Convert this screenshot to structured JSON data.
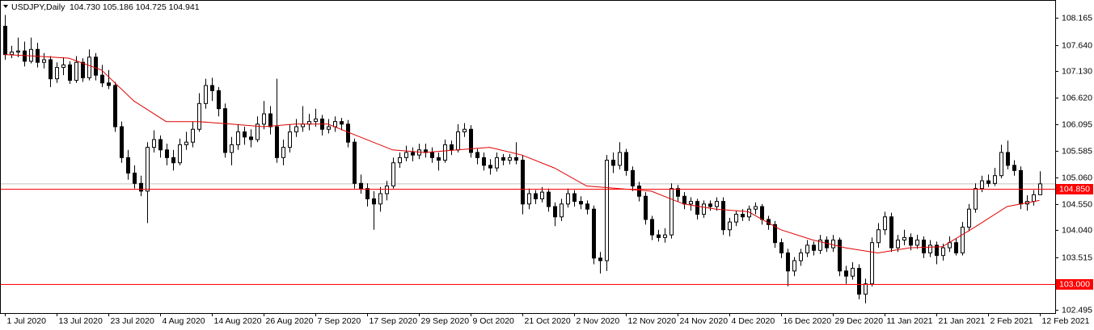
{
  "chart_data": {
    "type": "candlestick",
    "title": "USDJPY,Daily",
    "header_values": "104.730 105.186 104.725 104.941",
    "categories": [
      "1 Jul 2020",
      null,
      null,
      null,
      null,
      null,
      null,
      null,
      "13 Jul 2020",
      null,
      null,
      null,
      null,
      null,
      null,
      null,
      "23 Jul 2020",
      null,
      null,
      null,
      null,
      null,
      null,
      null,
      "4 Aug 2020",
      null,
      null,
      null,
      null,
      null,
      null,
      null,
      "14 Aug 2020",
      null,
      null,
      null,
      null,
      null,
      null,
      null,
      "26 Aug 2020",
      null,
      null,
      null,
      null,
      null,
      null,
      null,
      "7 Sep 2020",
      null,
      null,
      null,
      null,
      null,
      null,
      null,
      "17 Sep 2020",
      null,
      null,
      null,
      null,
      null,
      null,
      null,
      "29 Sep 2020",
      null,
      null,
      null,
      null,
      null,
      null,
      null,
      "9 Oct 2020",
      null,
      null,
      null,
      null,
      null,
      null,
      null,
      "21 Oct 2020",
      null,
      null,
      null,
      null,
      null,
      null,
      null,
      "2 Nov 2020",
      null,
      null,
      null,
      null,
      null,
      null,
      null,
      "12 Nov 2020",
      null,
      null,
      null,
      null,
      null,
      null,
      null,
      "24 Nov 2020",
      null,
      null,
      null,
      null,
      null,
      null,
      null,
      "4 Dec 2020",
      null,
      null,
      null,
      null,
      null,
      null,
      null,
      "16 Dec 2020",
      null,
      null,
      null,
      null,
      null,
      null,
      null,
      "29 Dec 2020",
      null,
      null,
      null,
      null,
      null,
      null,
      null,
      "11 Jan 2021",
      null,
      null,
      null,
      null,
      null,
      null,
      null,
      "21 Jan 2021",
      null,
      null,
      null,
      null,
      null,
      null,
      null,
      "2 Feb 2021",
      null,
      null,
      null,
      null,
      null,
      null,
      null,
      "12 Feb 2021"
    ],
    "ohlc": [
      [
        108.0,
        108.22,
        107.35,
        107.45
      ],
      [
        107.45,
        107.62,
        107.38,
        107.5
      ],
      [
        107.5,
        107.78,
        107.4,
        107.52
      ],
      [
        107.52,
        107.7,
        107.22,
        107.32
      ],
      [
        107.32,
        107.78,
        107.28,
        107.55
      ],
      [
        107.55,
        107.68,
        107.2,
        107.3
      ],
      [
        107.3,
        107.48,
        107.18,
        107.35
      ],
      [
        107.35,
        107.42,
        106.82,
        106.98
      ],
      [
        106.98,
        107.3,
        106.9,
        107.2
      ],
      [
        107.2,
        107.4,
        107.05,
        107.25
      ],
      [
        107.25,
        107.32,
        106.88,
        106.95
      ],
      [
        106.95,
        107.42,
        106.9,
        107.3
      ],
      [
        107.3,
        107.38,
        106.92,
        107.0
      ],
      [
        107.0,
        107.55,
        106.95,
        107.4
      ],
      [
        107.4,
        107.48,
        106.95,
        107.05
      ],
      [
        107.05,
        107.25,
        106.82,
        106.9
      ],
      [
        106.9,
        107.15,
        106.78,
        106.85
      ],
      [
        106.85,
        106.92,
        105.95,
        106.05
      ],
      [
        106.05,
        106.15,
        105.35,
        105.45
      ],
      [
        105.45,
        105.6,
        105.02,
        105.15
      ],
      [
        105.15,
        105.3,
        104.85,
        104.95
      ],
      [
        104.95,
        105.1,
        104.7,
        104.8
      ],
      [
        104.8,
        105.75,
        104.18,
        105.65
      ],
      [
        105.65,
        105.98,
        105.55,
        105.8
      ],
      [
        105.8,
        105.88,
        105.45,
        105.6
      ],
      [
        105.6,
        105.72,
        105.3,
        105.45
      ],
      [
        105.45,
        105.6,
        105.2,
        105.35
      ],
      [
        105.35,
        105.82,
        105.3,
        105.7
      ],
      [
        105.7,
        105.95,
        105.6,
        105.75
      ],
      [
        105.75,
        106.15,
        105.65,
        106.0
      ],
      [
        106.0,
        106.7,
        105.95,
        106.5
      ],
      [
        106.5,
        106.98,
        106.4,
        106.85
      ],
      [
        106.85,
        107.0,
        106.55,
        106.75
      ],
      [
        106.75,
        106.82,
        106.25,
        106.4
      ],
      [
        106.4,
        106.5,
        105.45,
        105.55
      ],
      [
        105.55,
        105.85,
        105.3,
        105.7
      ],
      [
        105.7,
        106.1,
        105.6,
        105.95
      ],
      [
        105.95,
        106.05,
        105.7,
        105.85
      ],
      [
        105.85,
        106.0,
        105.65,
        105.8
      ],
      [
        105.8,
        106.25,
        105.75,
        106.1
      ],
      [
        106.1,
        106.55,
        106.0,
        106.3
      ],
      [
        106.3,
        106.45,
        105.9,
        106.05
      ],
      [
        106.05,
        106.98,
        105.35,
        105.45
      ],
      [
        105.45,
        105.8,
        105.3,
        105.65
      ],
      [
        105.65,
        106.1,
        105.55,
        105.95
      ],
      [
        105.95,
        106.2,
        105.85,
        106.05
      ],
      [
        106.05,
        106.45,
        105.95,
        106.1
      ],
      [
        106.1,
        106.3,
        105.98,
        106.15
      ],
      [
        106.15,
        106.4,
        106.05,
        106.2
      ],
      [
        106.2,
        106.28,
        105.88,
        106.0
      ],
      [
        106.0,
        106.2,
        105.92,
        106.05
      ],
      [
        106.05,
        106.25,
        105.95,
        106.15
      ],
      [
        106.15,
        106.22,
        105.98,
        106.1
      ],
      [
        106.1,
        106.18,
        105.65,
        105.75
      ],
      [
        105.75,
        105.82,
        104.85,
        104.95
      ],
      [
        104.95,
        105.12,
        104.75,
        104.85
      ],
      [
        104.85,
        104.95,
        104.5,
        104.65
      ],
      [
        104.65,
        104.8,
        104.05,
        104.55
      ],
      [
        104.55,
        104.88,
        104.4,
        104.75
      ],
      [
        104.75,
        105.0,
        104.62,
        104.9
      ],
      [
        104.9,
        105.45,
        104.85,
        105.35
      ],
      [
        105.35,
        105.55,
        105.25,
        105.45
      ],
      [
        105.45,
        105.68,
        105.38,
        105.55
      ],
      [
        105.55,
        105.65,
        105.38,
        105.5
      ],
      [
        105.5,
        105.72,
        105.42,
        105.6
      ],
      [
        105.6,
        105.72,
        105.45,
        105.55
      ],
      [
        105.55,
        105.65,
        105.35,
        105.45
      ],
      [
        105.45,
        105.55,
        105.2,
        105.4
      ],
      [
        105.4,
        105.8,
        105.35,
        105.7
      ],
      [
        105.7,
        105.78,
        105.5,
        105.6
      ],
      [
        105.6,
        106.1,
        105.55,
        105.95
      ],
      [
        105.95,
        106.12,
        105.85,
        106.0
      ],
      [
        106.0,
        106.08,
        105.45,
        105.55
      ],
      [
        105.55,
        105.62,
        105.32,
        105.45
      ],
      [
        105.45,
        105.55,
        105.2,
        105.3
      ],
      [
        105.3,
        105.42,
        105.12,
        105.25
      ],
      [
        105.25,
        105.55,
        105.18,
        105.45
      ],
      [
        105.45,
        105.52,
        105.3,
        105.4
      ],
      [
        105.4,
        105.52,
        105.32,
        105.45
      ],
      [
        105.45,
        105.75,
        105.32,
        105.4
      ],
      [
        105.4,
        105.5,
        104.35,
        104.55
      ],
      [
        104.55,
        104.85,
        104.45,
        104.75
      ],
      [
        104.75,
        104.82,
        104.55,
        104.65
      ],
      [
        104.65,
        104.88,
        104.58,
        104.78
      ],
      [
        104.78,
        104.85,
        104.4,
        104.5
      ],
      [
        104.5,
        104.58,
        104.12,
        104.3
      ],
      [
        104.3,
        104.65,
        104.22,
        104.55
      ],
      [
        104.55,
        104.85,
        104.48,
        104.75
      ],
      [
        104.75,
        104.82,
        104.5,
        104.6
      ],
      [
        104.6,
        104.7,
        104.45,
        104.55
      ],
      [
        104.55,
        104.62,
        104.35,
        104.45
      ],
      [
        104.45,
        104.52,
        103.38,
        103.5
      ],
      [
        103.5,
        103.62,
        103.2,
        103.45
      ],
      [
        103.45,
        105.5,
        103.25,
        105.4
      ],
      [
        105.4,
        105.55,
        105.15,
        105.3
      ],
      [
        105.3,
        105.75,
        105.22,
        105.55
      ],
      [
        105.55,
        105.62,
        105.1,
        105.2
      ],
      [
        105.2,
        105.28,
        104.8,
        104.9
      ],
      [
        104.9,
        104.98,
        104.6,
        104.7
      ],
      [
        104.7,
        104.78,
        104.15,
        104.25
      ],
      [
        104.25,
        104.32,
        103.85,
        103.95
      ],
      [
        103.95,
        104.05,
        103.82,
        103.9
      ],
      [
        103.9,
        104.08,
        103.8,
        103.95
      ],
      [
        103.95,
        104.95,
        103.88,
        104.85
      ],
      [
        104.85,
        104.92,
        104.6,
        104.7
      ],
      [
        104.7,
        104.78,
        104.45,
        104.55
      ],
      [
        104.55,
        104.68,
        104.42,
        104.6
      ],
      [
        104.6,
        104.65,
        104.25,
        104.35
      ],
      [
        104.35,
        104.62,
        104.28,
        104.55
      ],
      [
        104.55,
        104.62,
        104.42,
        104.5
      ],
      [
        104.5,
        104.68,
        104.42,
        104.6
      ],
      [
        104.6,
        104.68,
        103.95,
        104.05
      ],
      [
        104.05,
        104.28,
        103.92,
        104.2
      ],
      [
        104.2,
        104.42,
        104.12,
        104.35
      ],
      [
        104.35,
        104.45,
        104.22,
        104.3
      ],
      [
        104.3,
        104.52,
        104.22,
        104.45
      ],
      [
        104.45,
        104.58,
        104.35,
        104.5
      ],
      [
        104.5,
        104.55,
        104.15,
        104.25
      ],
      [
        104.25,
        104.32,
        104.05,
        104.15
      ],
      [
        104.15,
        104.22,
        103.7,
        103.8
      ],
      [
        103.8,
        103.88,
        103.5,
        103.6
      ],
      [
        103.6,
        103.68,
        102.95,
        103.25
      ],
      [
        103.25,
        103.52,
        103.15,
        103.45
      ],
      [
        103.45,
        103.68,
        103.35,
        103.6
      ],
      [
        103.6,
        103.85,
        103.52,
        103.75
      ],
      [
        103.75,
        103.82,
        103.55,
        103.65
      ],
      [
        103.65,
        103.95,
        103.58,
        103.85
      ],
      [
        103.85,
        103.92,
        103.62,
        103.7
      ],
      [
        103.7,
        103.95,
        103.62,
        103.85
      ],
      [
        103.85,
        103.9,
        103.15,
        103.25
      ],
      [
        103.25,
        103.35,
        103.0,
        103.15
      ],
      [
        103.15,
        103.42,
        103.08,
        103.3
      ],
      [
        103.3,
        103.38,
        102.7,
        102.8
      ],
      [
        102.8,
        103.1,
        102.62,
        103.0
      ],
      [
        103.0,
        103.9,
        102.95,
        103.8
      ],
      [
        103.8,
        104.18,
        103.7,
        104.05
      ],
      [
        104.05,
        104.4,
        103.95,
        104.3
      ],
      [
        104.3,
        104.38,
        103.62,
        103.7
      ],
      [
        103.7,
        103.95,
        103.62,
        103.85
      ],
      [
        103.85,
        104.05,
        103.75,
        103.9
      ],
      [
        103.9,
        103.98,
        103.65,
        103.75
      ],
      [
        103.75,
        103.95,
        103.68,
        103.85
      ],
      [
        103.85,
        103.92,
        103.5,
        103.6
      ],
      [
        103.6,
        103.85,
        103.52,
        103.75
      ],
      [
        103.75,
        103.82,
        103.38,
        103.55
      ],
      [
        103.55,
        103.78,
        103.45,
        103.7
      ],
      [
        103.7,
        103.92,
        103.62,
        103.8
      ],
      [
        103.8,
        103.88,
        103.55,
        103.6
      ],
      [
        103.6,
        104.2,
        103.55,
        104.1
      ],
      [
        104.1,
        104.55,
        104.02,
        104.45
      ],
      [
        104.45,
        104.95,
        104.38,
        104.85
      ],
      [
        104.85,
        105.1,
        104.78,
        105.0
      ],
      [
        105.0,
        105.12,
        104.88,
        104.95
      ],
      [
        104.95,
        105.25,
        104.9,
        105.1
      ],
      [
        105.1,
        105.7,
        105.05,
        105.55
      ],
      [
        105.55,
        105.78,
        105.22,
        105.3
      ],
      [
        105.3,
        105.4,
        105.1,
        105.2
      ],
      [
        105.2,
        105.28,
        104.45,
        104.55
      ],
      [
        104.55,
        104.72,
        104.42,
        104.6
      ],
      [
        104.6,
        104.82,
        104.52,
        104.73
      ],
      [
        104.73,
        105.186,
        104.725,
        104.941
      ]
    ],
    "up_color": "#ffffff",
    "down_color": "#000000",
    "indicator": {
      "color": "#e00000",
      "x": [
        0,
        5,
        10,
        15,
        20,
        25,
        30,
        35,
        40,
        45,
        50,
        55,
        60,
        65,
        70,
        75,
        80,
        85,
        90,
        95,
        100,
        105,
        110,
        115,
        120,
        125,
        130,
        135,
        140,
        145,
        150,
        155,
        160
      ],
      "values": [
        107.45,
        107.42,
        107.38,
        107.15,
        106.55,
        106.15,
        106.15,
        106.1,
        106.05,
        106.1,
        106.1,
        105.85,
        105.6,
        105.55,
        105.6,
        105.65,
        105.5,
        105.25,
        104.9,
        104.85,
        104.8,
        104.55,
        104.45,
        104.4,
        104.05,
        103.85,
        103.7,
        103.6,
        103.7,
        103.72,
        104.1,
        104.5,
        104.62
      ]
    },
    "bid_line": {
      "value": 104.941,
      "color": "#c0c0c0"
    },
    "levels": [
      {
        "value": 104.85,
        "label": "104.850",
        "color": "#ff0000"
      },
      {
        "value": 103,
        "label": "103.000",
        "color": "#ff0000"
      }
    ],
    "ylim": [
      102.433,
      108.478
    ],
    "yticks": [
      108.165,
      {
        "value": 107.64,
        "label": "107.640"
      },
      {
        "value": 107.13,
        "label": "107.130"
      },
      {
        "value": 106.62,
        "label": "106.620"
      },
      106.095,
      105.585,
      {
        "value": 105.06,
        "label": "105.060"
      },
      {
        "value": 104.55,
        "label": "104.550"
      },
      {
        "value": 104.04,
        "label": "104.040"
      },
      103.515,
      102.495
    ],
    "grid": false
  }
}
